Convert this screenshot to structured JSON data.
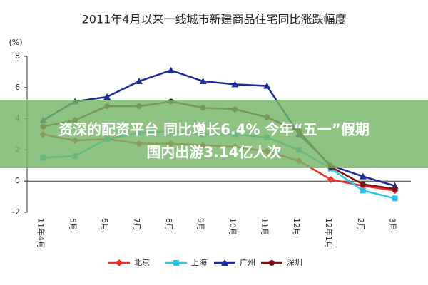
{
  "chart_data": {
    "type": "line",
    "title": "2011年4月以来一线城市新建商品住宅同比涨跌幅度",
    "y_label": "(%)",
    "categories": [
      "11年4月",
      "5月",
      "6月",
      "7月",
      "8月",
      "9月",
      "10月",
      "11月",
      "12月",
      "12年1月",
      "2月",
      "3月"
    ],
    "series": [
      {
        "name": "北京",
        "color": "#e8302a",
        "marker": "diamond",
        "values": [
          3.0,
          2.6,
          2.7,
          2.4,
          2.4,
          2.3,
          2.2,
          1.9,
          1.3,
          0.1,
          -0.3,
          -0.6
        ]
      },
      {
        "name": "上海",
        "color": "#2cc4e8",
        "marker": "square",
        "values": [
          1.5,
          1.6,
          2.7,
          3.1,
          3.2,
          3.0,
          3.0,
          2.8,
          2.0,
          0.8,
          -0.6,
          -1.1
        ]
      },
      {
        "name": "广州",
        "color": "#1c2a9c",
        "marker": "triangle",
        "values": [
          3.9,
          5.1,
          5.4,
          6.4,
          7.1,
          6.4,
          6.2,
          6.1,
          3.0,
          1.0,
          0.3,
          -0.3
        ]
      },
      {
        "name": "深圳",
        "color": "#7a1414",
        "marker": "circle",
        "values": [
          3.5,
          3.9,
          4.8,
          4.8,
          5.1,
          4.7,
          4.6,
          4.1,
          3.2,
          0.9,
          -0.2,
          -0.5
        ]
      }
    ],
    "ylim": [
      -2,
      8
    ],
    "yticks": [
      -2,
      0,
      2,
      4,
      6,
      8
    ],
    "grid": false
  },
  "banner": {
    "lines": [
      "资深的配资平台 同比增长6.4% 今年“五一”假期",
      "国内出游3.14亿人次"
    ],
    "color": "rgba(118,182,104,0.82)"
  }
}
